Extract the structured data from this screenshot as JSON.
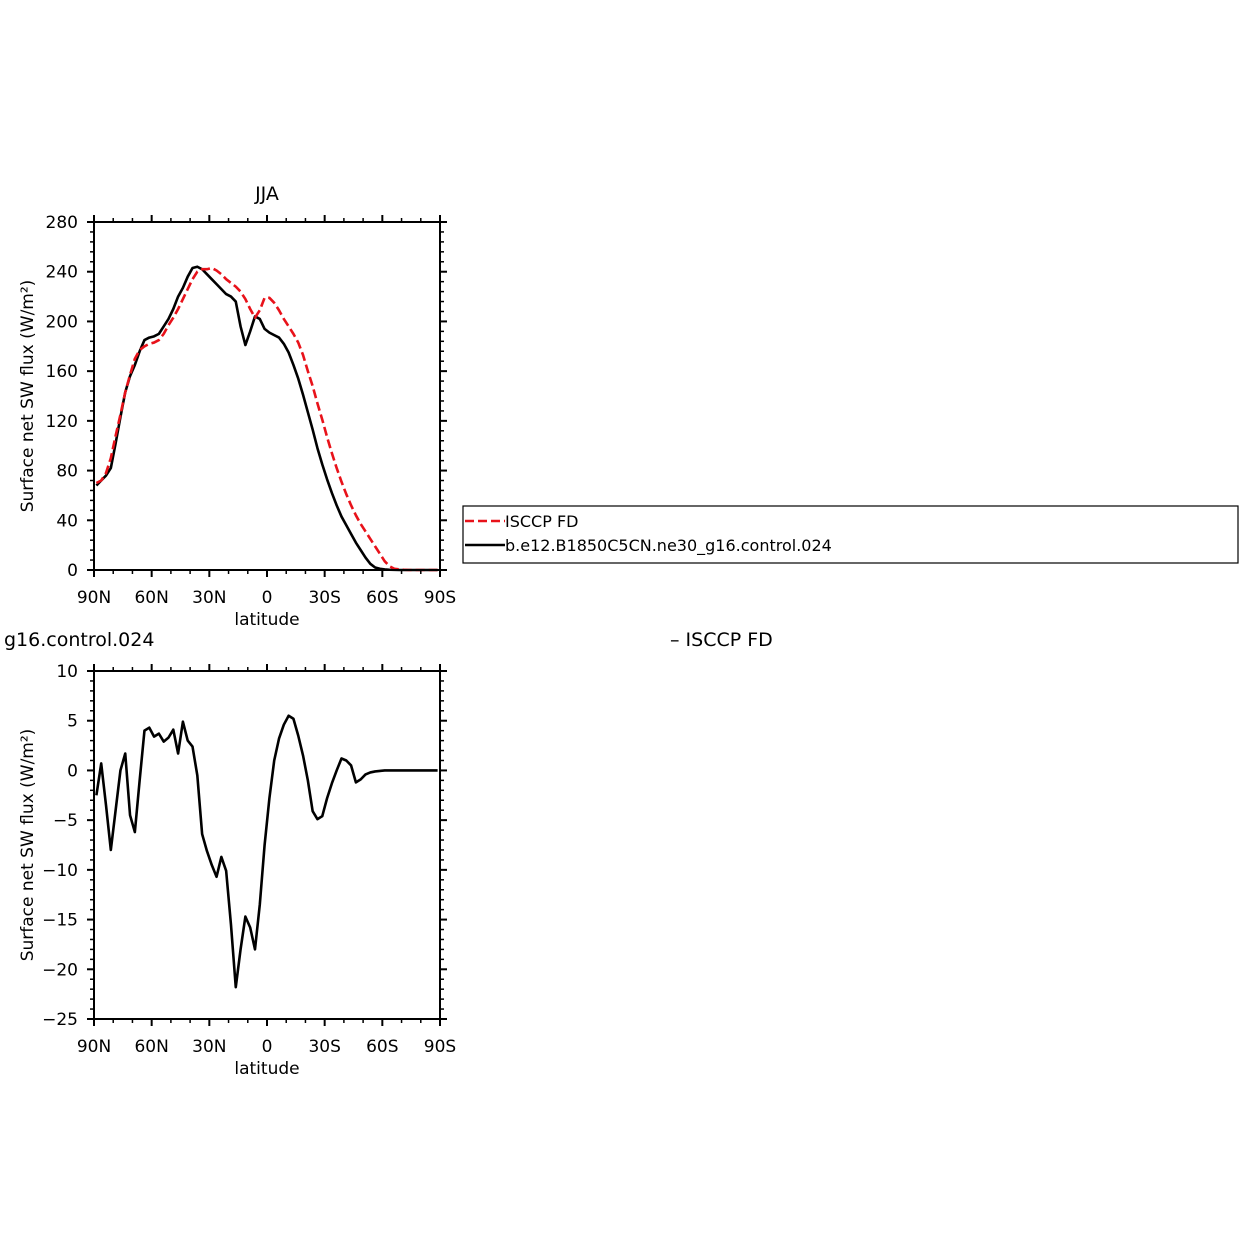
{
  "chart_data": [
    {
      "type": "line",
      "title": "JJA",
      "xlabel": "latitude",
      "ylabel": "Surface net SW flux (W/m²)",
      "xlim": [
        90,
        -90
      ],
      "ylim": [
        0,
        280
      ],
      "xticks": [
        90,
        60,
        30,
        0,
        -30,
        -60,
        -90
      ],
      "xtick_labels": [
        "90N",
        "60N",
        "30N",
        "0",
        "30S",
        "60S",
        "90S"
      ],
      "yticks": [
        0,
        40,
        80,
        120,
        160,
        200,
        240,
        280
      ],
      "ytick_labels": [
        "0",
        "40",
        "80",
        "120",
        "160",
        "200",
        "240",
        "280"
      ],
      "grid": false,
      "legend": {
        "placement": "right",
        "entries": [
          "ISCCP FD",
          "b.e12.B1850C5CN.ne30_g16.control.024"
        ]
      },
      "series": [
        {
          "name": "ISCCP FD",
          "color": "#e8121a",
          "dash": "dashed",
          "x": [
            88.75,
            86.25,
            83.75,
            81.25,
            78.75,
            76.25,
            73.75,
            71.25,
            68.75,
            66.25,
            63.75,
            61.25,
            58.75,
            56.25,
            53.75,
            51.25,
            48.75,
            46.25,
            43.75,
            41.25,
            38.75,
            36.25,
            33.75,
            31.25,
            28.75,
            26.25,
            23.75,
            21.25,
            18.75,
            16.25,
            13.75,
            11.25,
            8.75,
            6.25,
            3.75,
            1.25,
            -1.25,
            -3.75,
            -6.25,
            -8.75,
            -11.25,
            -13.75,
            -16.25,
            -18.75,
            -21.25,
            -23.75,
            -26.25,
            -28.75,
            -31.25,
            -33.75,
            -36.25,
            -38.75,
            -41.25,
            -43.75,
            -46.25,
            -48.75,
            -51.25,
            -53.75,
            -56.25,
            -58.75,
            -61.25,
            -63.75,
            -66.25,
            -68.75,
            -71.25,
            -73.75,
            -76.25,
            -78.75,
            -81.25,
            -83.75,
            -86.25,
            -88.75
          ],
          "y": [
            70,
            72,
            78,
            90,
            108,
            125,
            143,
            157,
            170,
            177,
            180,
            182,
            183,
            185,
            190,
            197,
            203,
            210,
            218,
            226,
            234,
            240,
            242,
            242,
            243,
            241,
            238,
            234,
            231,
            228,
            224,
            218,
            210,
            203,
            209,
            219,
            219,
            215,
            209,
            202,
            196,
            190,
            183,
            173,
            160,
            148,
            134,
            121,
            107,
            94,
            82,
            71,
            61,
            52,
            44,
            37,
            31,
            25,
            19,
            13,
            7,
            3,
            1,
            0.5,
            0.2,
            0,
            0,
            0,
            0,
            0,
            0,
            0
          ]
        },
        {
          "name": "b.e12.B1850C5CN.ne30_g16.control.024",
          "color": "#000000",
          "dash": "solid",
          "x": [
            88.75,
            86.25,
            83.75,
            81.25,
            78.75,
            76.25,
            73.75,
            71.25,
            68.75,
            66.25,
            63.75,
            61.25,
            58.75,
            56.25,
            53.75,
            51.25,
            48.75,
            46.25,
            43.75,
            41.25,
            38.75,
            36.25,
            33.75,
            31.25,
            28.75,
            26.25,
            23.75,
            21.25,
            18.75,
            16.25,
            13.75,
            11.25,
            8.75,
            6.25,
            3.75,
            1.25,
            -1.25,
            -3.75,
            -6.25,
            -8.75,
            -11.25,
            -13.75,
            -16.25,
            -18.75,
            -21.25,
            -23.75,
            -26.25,
            -28.75,
            -31.25,
            -33.75,
            -36.25,
            -38.75,
            -41.25,
            -43.75,
            -46.25,
            -48.75,
            -51.25,
            -53.75,
            -56.25,
            -58.75,
            -61.25,
            -63.75,
            -66.25,
            -68.75,
            -71.25,
            -73.75,
            -76.25,
            -78.75,
            -81.25,
            -83.75,
            -86.25,
            -88.75
          ],
          "y": [
            68,
            72,
            76,
            82,
            102,
            123,
            143,
            156,
            165,
            176,
            185,
            187,
            188,
            190,
            196,
            202,
            210,
            220,
            227,
            236,
            243,
            244,
            242,
            238,
            234,
            230,
            226,
            222,
            220,
            216,
            196,
            181,
            192,
            204,
            202,
            194,
            191,
            189,
            187,
            182,
            175,
            165,
            154,
            141,
            127,
            113,
            98,
            85,
            73,
            62,
            52,
            43,
            36,
            29,
            22,
            16,
            10,
            5,
            2,
            1,
            0.5,
            0.2,
            0.1,
            0,
            0,
            0,
            0,
            0,
            0,
            0,
            0,
            0
          ]
        }
      ]
    },
    {
      "type": "line",
      "title": "g16.control.024",
      "title_right": "– ISCCP FD",
      "xlabel": "latitude",
      "ylabel": "Surface net SW flux (W/m²)",
      "xlim": [
        90,
        -90
      ],
      "ylim": [
        -25,
        10
      ],
      "xticks": [
        90,
        60,
        30,
        0,
        -30,
        -60,
        -90
      ],
      "xtick_labels": [
        "90N",
        "60N",
        "30N",
        "0",
        "30S",
        "60S",
        "90S"
      ],
      "yticks": [
        -25,
        -20,
        -15,
        -10,
        -5,
        0,
        5,
        10
      ],
      "ytick_labels": [
        "−25",
        "−20",
        "−15",
        "−10",
        "−5",
        "0",
        "5",
        "10"
      ],
      "grid": false,
      "series": [
        {
          "color": "#000000",
          "dash": "solid",
          "x": [
            88.75,
            86.25,
            83.75,
            81.25,
            78.75,
            76.25,
            73.75,
            71.25,
            68.75,
            66.25,
            63.75,
            61.25,
            58.75,
            56.25,
            53.75,
            51.25,
            48.75,
            46.25,
            43.75,
            41.25,
            38.75,
            36.25,
            33.75,
            31.25,
            28.75,
            26.25,
            23.75,
            21.25,
            18.75,
            16.25,
            13.75,
            11.25,
            8.75,
            6.25,
            3.75,
            1.25,
            -1.25,
            -3.75,
            -6.25,
            -8.75,
            -11.25,
            -13.75,
            -16.25,
            -18.75,
            -21.25,
            -23.75,
            -26.25,
            -28.75,
            -31.25,
            -33.75,
            -36.25,
            -38.75,
            -41.25,
            -43.75,
            -46.25,
            -48.75,
            -51.25,
            -53.75,
            -56.25,
            -58.75,
            -61.25,
            -63.75,
            -66.25,
            -68.75,
            -71.25,
            -73.75,
            -76.25,
            -78.75,
            -81.25,
            -83.75,
            -86.25,
            -88.75
          ],
          "y": [
            -2.5,
            0.7,
            -3.5,
            -8.0,
            -4.0,
            0.0,
            1.7,
            -4.5,
            -6.2,
            -1.0,
            4.0,
            4.3,
            3.4,
            3.7,
            2.9,
            3.3,
            4.1,
            1.7,
            4.9,
            3.0,
            2.4,
            -0.5,
            -6.4,
            -8.1,
            -9.5,
            -10.7,
            -8.7,
            -10.1,
            -15.5,
            -21.8,
            -18.0,
            -14.7,
            -15.8,
            -18.0,
            -13.5,
            -7.5,
            -2.8,
            1.0,
            3.2,
            4.6,
            5.5,
            5.2,
            3.5,
            1.5,
            -1.0,
            -4.1,
            -4.9,
            -4.6,
            -2.8,
            -1.3,
            0.0,
            1.2,
            1.0,
            0.5,
            -1.2,
            -0.9,
            -0.4,
            -0.2,
            -0.1,
            -0.05,
            0,
            0,
            0,
            0,
            0,
            0,
            0,
            0,
            0,
            0,
            0,
            0
          ]
        }
      ]
    }
  ]
}
